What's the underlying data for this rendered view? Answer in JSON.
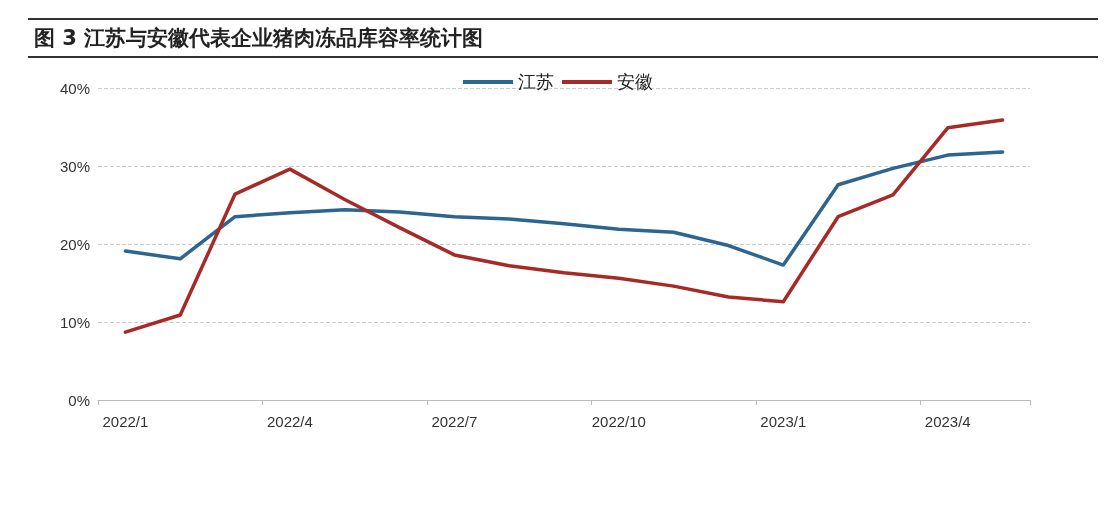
{
  "chart_data": {
    "type": "line",
    "title": "图 3  江苏与安徽代表企业猪肉冻品库容率统计图",
    "categories": [
      "2022/1",
      null,
      null,
      "2022/4",
      null,
      null,
      "2022/7",
      null,
      null,
      "2022/10",
      null,
      null,
      "2023/1",
      null,
      null,
      "2023/4",
      null
    ],
    "series": [
      {
        "name": "江苏",
        "color": "#2b6590",
        "values": [
          19.1,
          18.1,
          23.5,
          24.0,
          24.4,
          24.1,
          23.5,
          23.2,
          22.6,
          21.9,
          21.5,
          19.8,
          17.3,
          27.6,
          29.7,
          31.4,
          31.8
        ]
      },
      {
        "name": "安徽",
        "color": "#a62a26",
        "values": [
          8.7,
          10.9,
          26.4,
          29.6,
          25.7,
          22.1,
          18.6,
          17.2,
          16.3,
          15.6,
          14.6,
          13.2,
          12.6,
          23.5,
          26.3,
          34.9,
          35.9
        ]
      }
    ],
    "ylim": [
      0,
      40
    ],
    "yticks": [
      {
        "value": 0,
        "label": "0%"
      },
      {
        "value": 10,
        "label": "10%"
      },
      {
        "value": 20,
        "label": "20%"
      },
      {
        "value": 30,
        "label": "30%"
      },
      {
        "value": 40,
        "label": "40%"
      }
    ],
    "grid": "y",
    "legend": "top",
    "marker": "none",
    "line_style": "solid"
  }
}
